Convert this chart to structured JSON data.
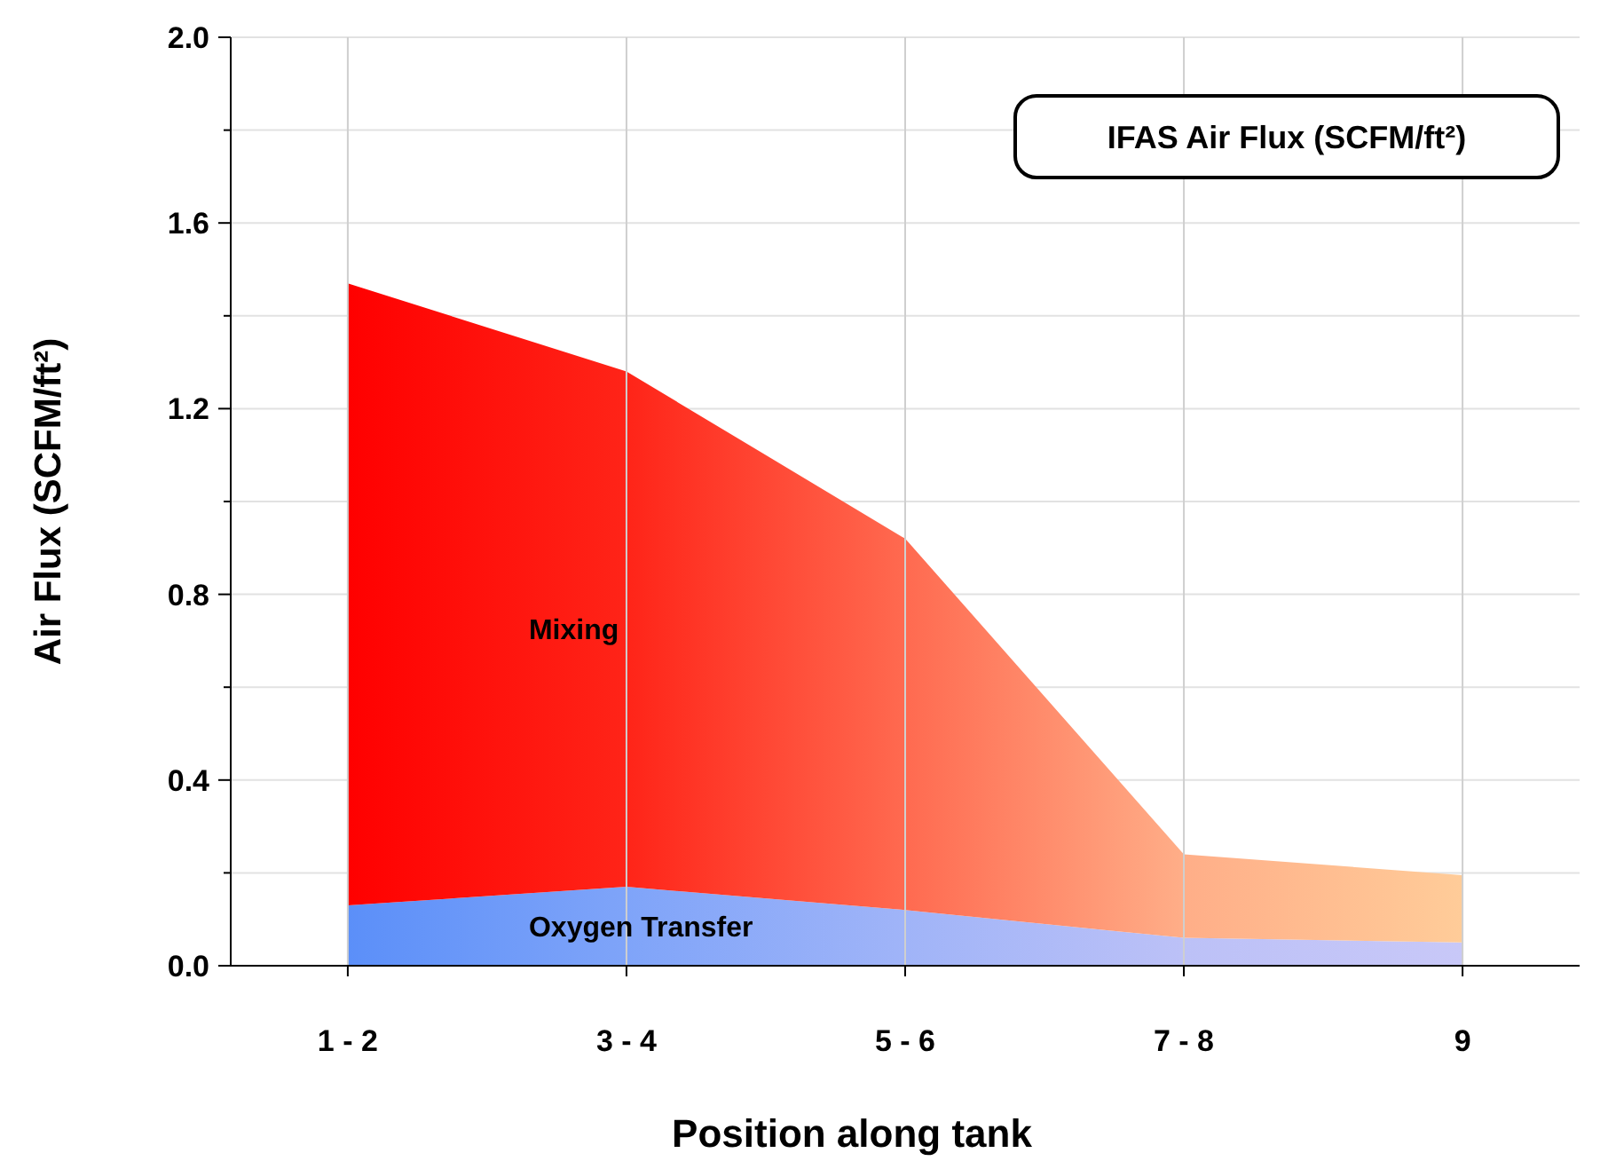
{
  "chart_data": {
    "type": "area",
    "title": "IFAS Air Flux (SCFM/ft²)",
    "xlabel": "Position along tank",
    "ylabel": "Air Flux (SCFM/ft²)",
    "categories": [
      "1 - 2",
      "3 - 4",
      "5 - 6",
      "7 - 8",
      "9"
    ],
    "stacked": true,
    "grid": true,
    "ylim": [
      0,
      2
    ],
    "yticks": [
      {
        "value": 0,
        "label": "0.0"
      },
      {
        "value": 0.2,
        "label": null
      },
      0.4,
      {
        "value": 0.6,
        "label": null
      },
      0.8,
      {
        "value": 1,
        "label": null
      },
      1.2,
      {
        "value": 1.4,
        "label": null
      },
      1.6,
      {
        "value": 1.8,
        "label": null
      },
      {
        "value": 2,
        "label": "2.0"
      }
    ],
    "series": [
      {
        "name": "Oxygen Transfer",
        "colors": [
          "#5b8ff9",
          "#7fa4f9",
          "#a0b4f8",
          "#bcc1f7",
          "#c8c8f8"
        ],
        "values": [
          0.13,
          0.17,
          0.12,
          0.06,
          0.05
        ]
      },
      {
        "name": "Mixing",
        "colors": [
          "#ff0000",
          "#ff2418",
          "#ff6a50",
          "#ffae88",
          "#ffcc99"
        ],
        "values": [
          1.34,
          1.11,
          0.8,
          0.18,
          0.145
        ]
      }
    ]
  }
}
